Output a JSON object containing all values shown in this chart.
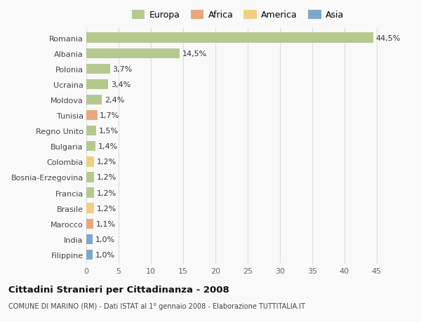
{
  "countries": [
    "Romania",
    "Albania",
    "Polonia",
    "Ucraina",
    "Moldova",
    "Tunisia",
    "Regno Unito",
    "Bulgaria",
    "Colombia",
    "Bosnia-Erzegovina",
    "Francia",
    "Brasile",
    "Marocco",
    "India",
    "Filippine"
  ],
  "values": [
    44.5,
    14.5,
    3.7,
    3.4,
    2.4,
    1.7,
    1.5,
    1.4,
    1.2,
    1.2,
    1.2,
    1.2,
    1.1,
    1.0,
    1.0
  ],
  "labels": [
    "44,5%",
    "14,5%",
    "3,7%",
    "3,4%",
    "2,4%",
    "1,7%",
    "1,5%",
    "1,4%",
    "1,2%",
    "1,2%",
    "1,2%",
    "1,2%",
    "1,1%",
    "1,0%",
    "1,0%"
  ],
  "continent": [
    "Europa",
    "Europa",
    "Europa",
    "Europa",
    "Europa",
    "Africa",
    "Europa",
    "Europa",
    "America",
    "Europa",
    "Europa",
    "America",
    "Africa",
    "Asia",
    "Asia"
  ],
  "colors": {
    "Europa": "#b5c98e",
    "Africa": "#e8a87c",
    "America": "#f0d080",
    "Asia": "#7ea8c9"
  },
  "title_main": "Cittadini Stranieri per Cittadinanza - 2008",
  "title_sub": "COMUNE DI MARINO (RM) - Dati ISTAT al 1° gennaio 2008 - Elaborazione TUTTITALIA.IT",
  "xlim": [
    0,
    47
  ],
  "xticks": [
    0,
    5,
    10,
    15,
    20,
    25,
    30,
    35,
    40,
    45
  ],
  "background_color": "#f9f9f9",
  "grid_color": "#dddddd",
  "bar_height": 0.65,
  "label_fontsize": 8.0,
  "tick_fontsize": 8.0,
  "legend_fontsize": 9.0
}
